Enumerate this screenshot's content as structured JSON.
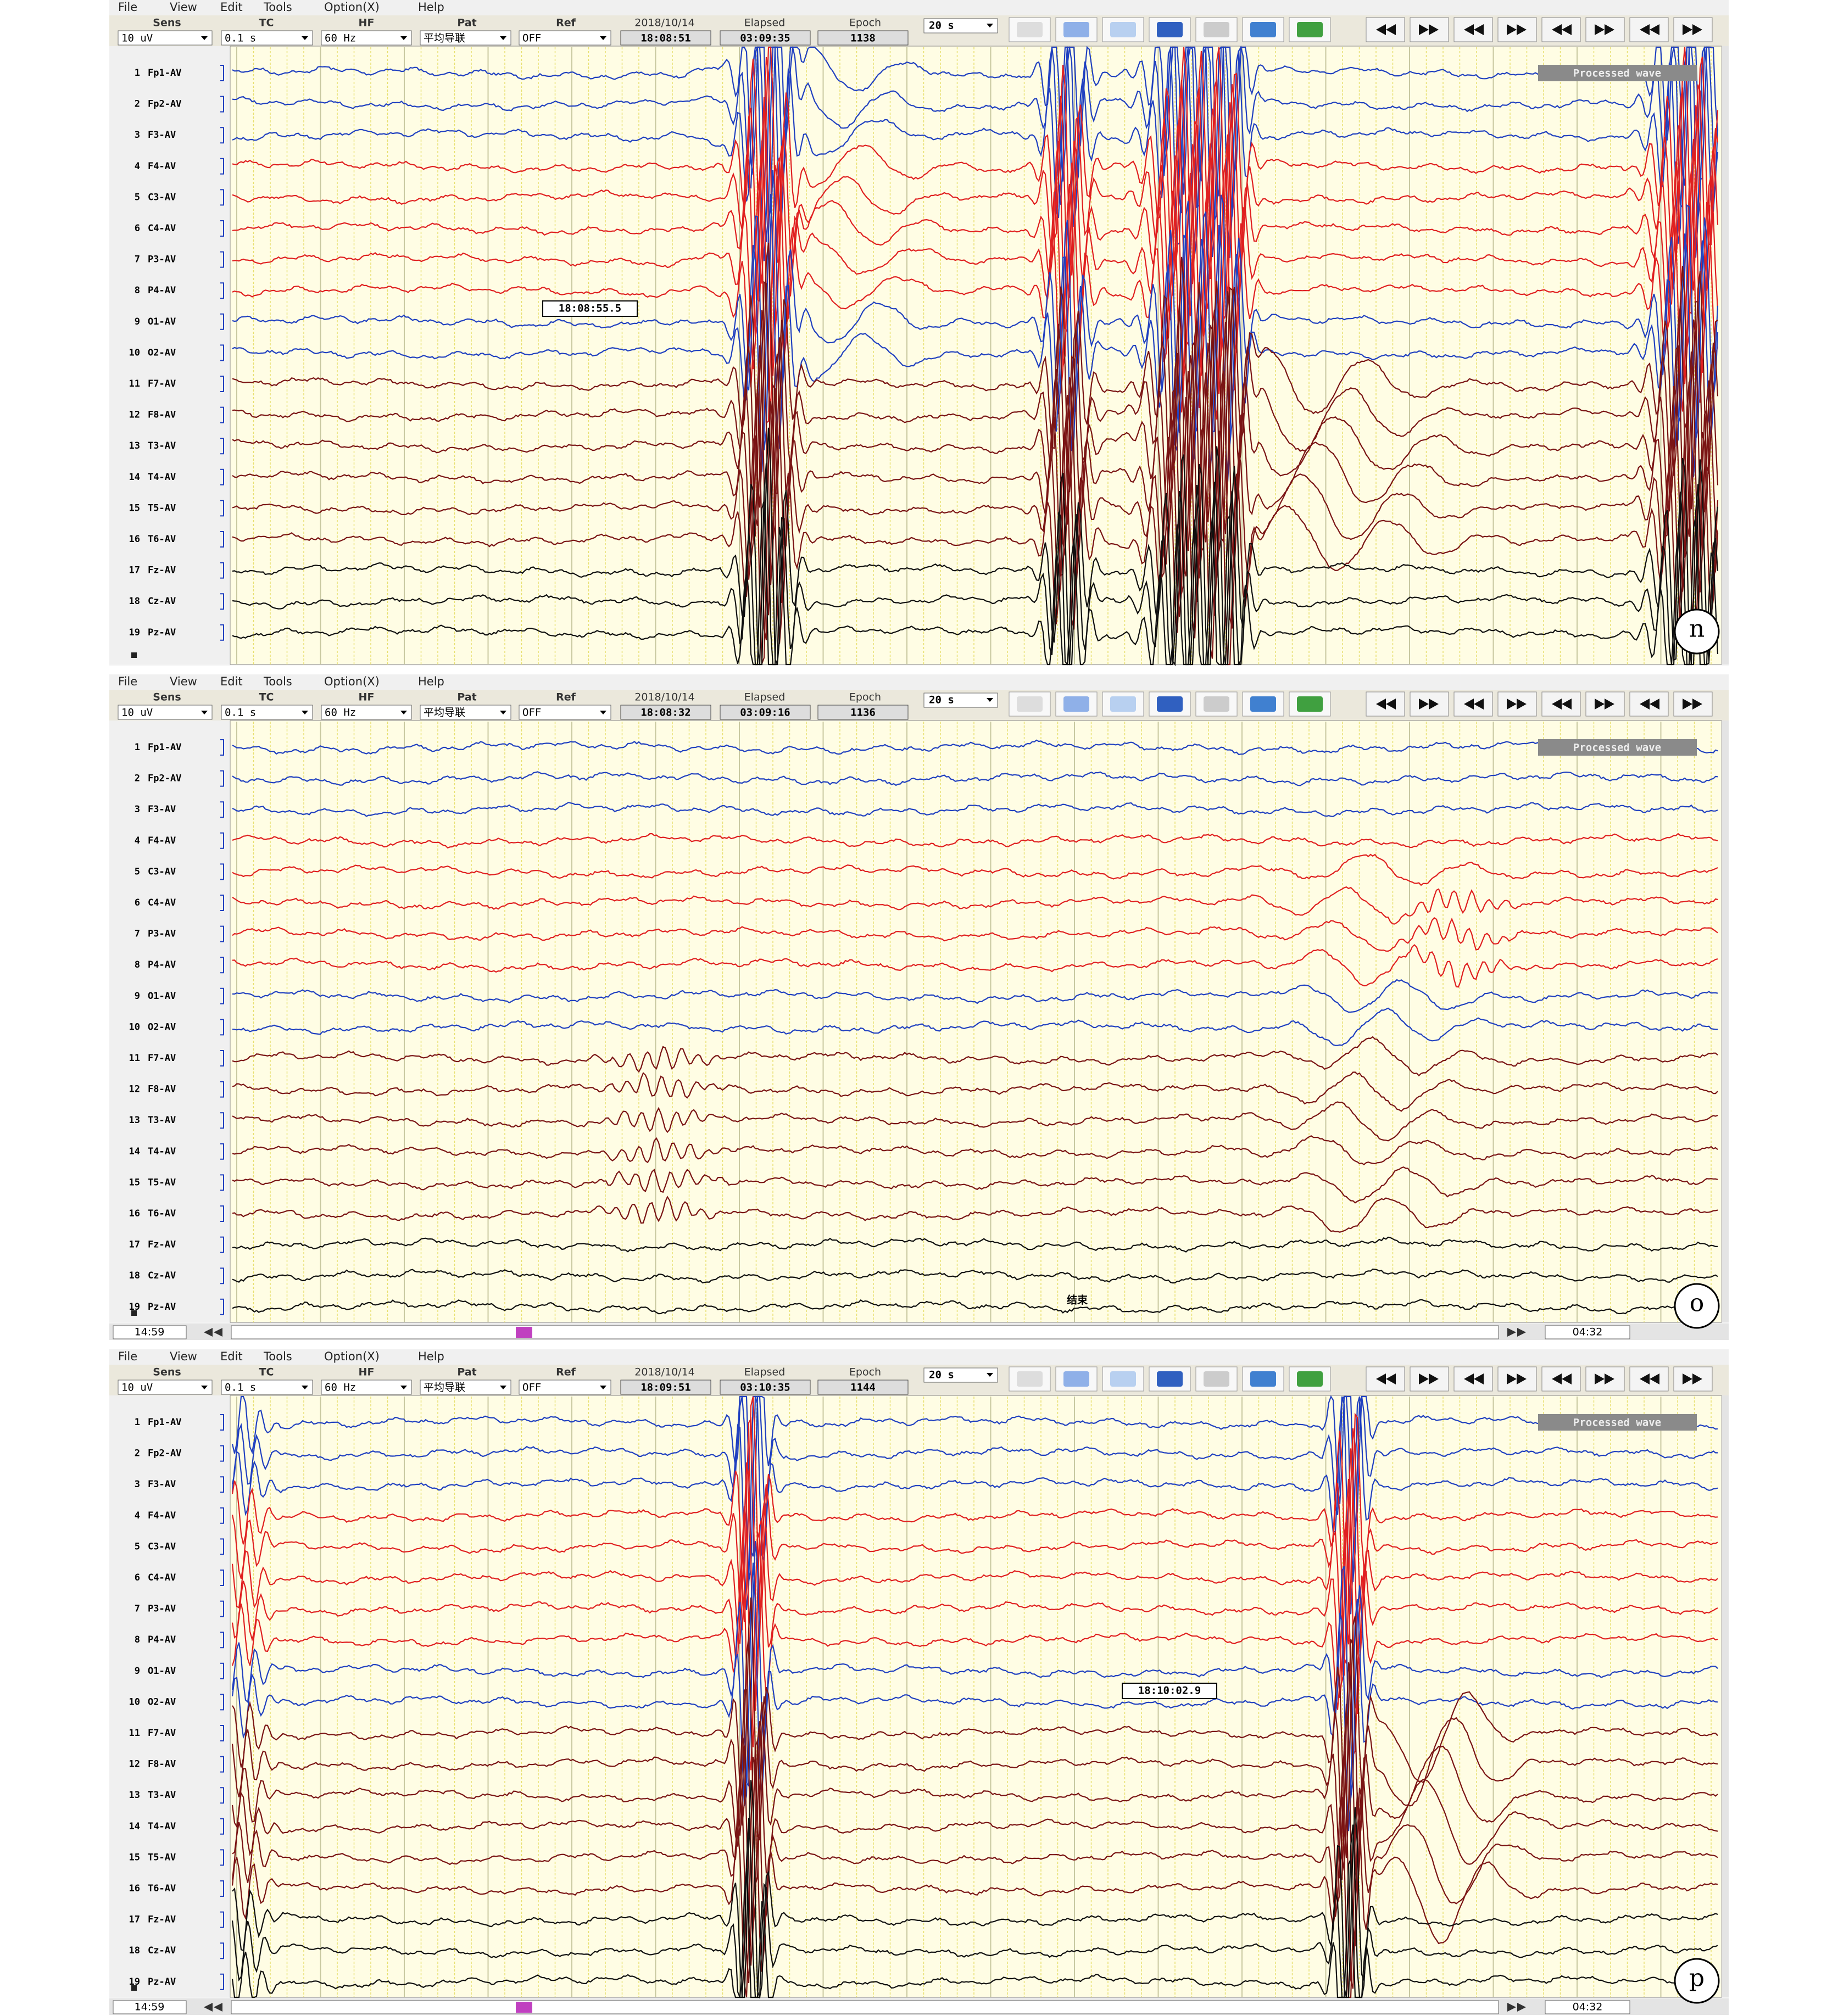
{
  "menu": [
    "File",
    "View",
    "Edit",
    "Tools",
    "Option(X)",
    "Help"
  ],
  "field_labels": [
    "Sens",
    "TC",
    "HF",
    "Pat",
    "Ref"
  ],
  "field_values": [
    "10 uV",
    "0.1 s",
    "60 Hz",
    "平均导联",
    "OFF"
  ],
  "date": "2018/10/14",
  "elapsed_label": "Elapsed",
  "epoch_label": "Epoch",
  "page_length": "20 s",
  "processed_label": "Processed wave",
  "channels": [
    {
      "n": 1,
      "label": "Fp1-AV"
    },
    {
      "n": 2,
      "label": "Fp2-AV"
    },
    {
      "n": 3,
      "label": "F3-AV"
    },
    {
      "n": 4,
      "label": "F4-AV"
    },
    {
      "n": 5,
      "label": "C3-AV"
    },
    {
      "n": 6,
      "label": "C4-AV"
    },
    {
      "n": 7,
      "label": "P3-AV"
    },
    {
      "n": 8,
      "label": "P4-AV"
    },
    {
      "n": 9,
      "label": "O1-AV"
    },
    {
      "n": 10,
      "label": "O2-AV"
    },
    {
      "n": 11,
      "label": "F7-AV"
    },
    {
      "n": 12,
      "label": "F8-AV"
    },
    {
      "n": 13,
      "label": "T3-AV"
    },
    {
      "n": 14,
      "label": "T4-AV"
    },
    {
      "n": 15,
      "label": "T5-AV"
    },
    {
      "n": 16,
      "label": "T6-AV"
    },
    {
      "n": 17,
      "label": "Fz-AV"
    },
    {
      "n": 18,
      "label": "Cz-AV"
    },
    {
      "n": 19,
      "label": "Pz-AV"
    }
  ],
  "panels": [
    {
      "letter": "n",
      "time": "18:08:51",
      "elapsed": "03:09:35",
      "epoch": 1138,
      "annotation": "18:08:55.5"
    },
    {
      "letter": "o",
      "time": "18:08:32",
      "elapsed": "03:09:16",
      "epoch": 1136,
      "annotation": "结束",
      "scroll_start": "14:59",
      "scroll_end": "04:32"
    },
    {
      "letter": "p",
      "time": "18:09:51",
      "elapsed": "03:10:35",
      "epoch": 1144,
      "annotation": "18:10:02.9",
      "scroll_start": "14:59",
      "scroll_end": "04:32"
    }
  ]
}
